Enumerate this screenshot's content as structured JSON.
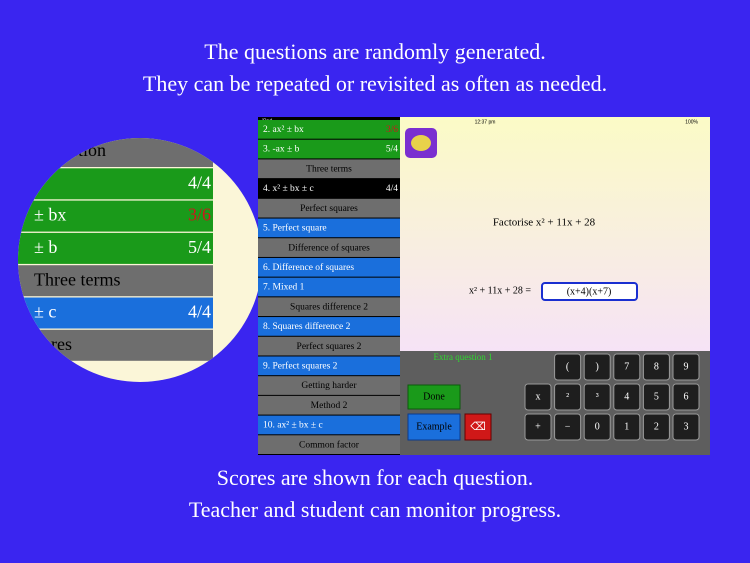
{
  "header": {
    "lines": [
      "The questions are randomly generated.",
      "They can be repeated or revisited as often as needed."
    ]
  },
  "footer": {
    "lines": [
      "Scores are shown for each question.",
      "Teacher and student can monitor progress."
    ]
  },
  "zoom": {
    "rows": [
      {
        "label": "action",
        "kind": "header"
      },
      {
        "score": "4/4",
        "kind": "green"
      },
      {
        "label": "± bx",
        "score": "3/6",
        "kind": "green",
        "score_color": "#d0161b"
      },
      {
        "label": "± b",
        "score": "5/4",
        "kind": "green"
      },
      {
        "label": "Three terms",
        "kind": "header"
      },
      {
        "label": "± c",
        "score": "4/4",
        "kind": "blue"
      },
      {
        "label": "uares",
        "kind": "header"
      }
    ]
  },
  "status_bar": {
    "device": "iPad",
    "time": "12:37 pm",
    "battery": "100%"
  },
  "sidebar": {
    "rows": [
      {
        "label": "2. ax² ± bx",
        "score": "3/6",
        "kind": "green",
        "score_color": "#d0161b"
      },
      {
        "label": "3. -ax ± b",
        "score": "5/4",
        "kind": "green"
      },
      {
        "label": "Three terms",
        "kind": "header"
      },
      {
        "label": "4. x² ± bx ± c",
        "score": "4/4",
        "kind": "selected"
      },
      {
        "label": "Perfect squares",
        "kind": "header"
      },
      {
        "label": "5. Perfect square",
        "kind": "blue"
      },
      {
        "label": "Difference of squares",
        "kind": "header"
      },
      {
        "label": "6. Difference of squares",
        "kind": "blue"
      },
      {
        "label": "7. Mixed 1",
        "kind": "blue"
      },
      {
        "label": "Squares difference 2",
        "kind": "header"
      },
      {
        "label": "8. Squares difference 2",
        "kind": "blue"
      },
      {
        "label": "Perfect squares 2",
        "kind": "header"
      },
      {
        "label": "9. Perfect squares 2",
        "kind": "blue"
      },
      {
        "label": "Getting harder",
        "kind": "header"
      },
      {
        "label": "Method 2",
        "kind": "header"
      },
      {
        "label": "10. ax² ± bx ± c",
        "kind": "blue"
      },
      {
        "label": "Common factor",
        "kind": "header"
      }
    ]
  },
  "question": {
    "prompt": "Factorise  x² + 11x + 28",
    "lhs": "x² + 11x + 28  =",
    "answer": "(x+4)(x+7)"
  },
  "extra": "Extra question 1",
  "buttons": {
    "done": "Done",
    "example": "Example",
    "delete": "⌫"
  },
  "keypad": {
    "rows": [
      [
        "(",
        ")",
        "7",
        "8",
        "9"
      ],
      [
        "x",
        "²",
        "³",
        "4",
        "5",
        "6"
      ],
      [
        "+",
        "−",
        "0",
        "1",
        "2",
        "3"
      ]
    ]
  }
}
